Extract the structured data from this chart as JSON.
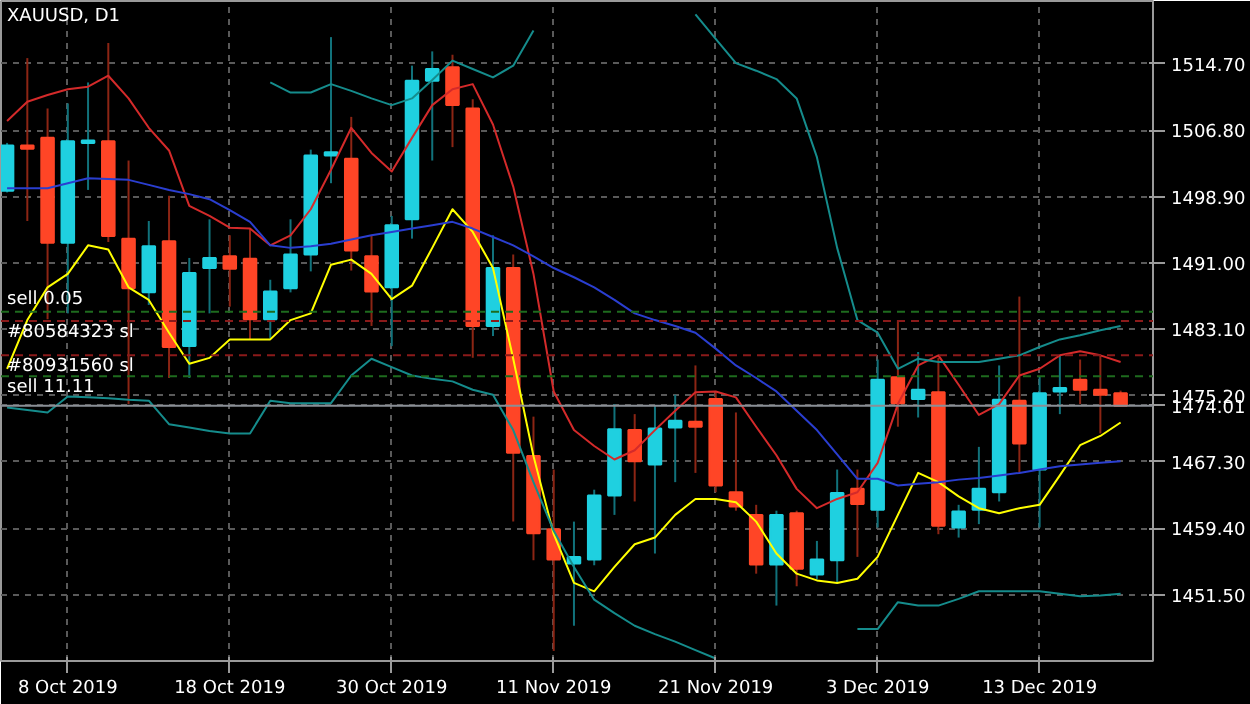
{
  "chart_data": {
    "type": "candlestick",
    "title": "XAUUSD, D1",
    "categories": [
      null,
      null,
      null,
      "8 Oct 2019",
      null,
      null,
      null,
      null,
      null,
      null,
      null,
      "18 Oct 2019",
      null,
      null,
      null,
      null,
      null,
      null,
      null,
      "30 Oct 2019",
      null,
      null,
      null,
      null,
      null,
      null,
      null,
      "11 Nov 2019",
      null,
      null,
      null,
      null,
      null,
      null,
      null,
      "21 Nov 2019",
      null,
      null,
      null,
      null,
      null,
      null,
      null,
      "3 Dec 2019",
      null,
      null,
      null,
      null,
      null,
      null,
      null,
      "13 Dec 2019",
      null,
      null,
      null,
      null
    ],
    "ohlc": [
      [
        1499.6,
        1505.3,
        1499.4,
        1505.0
      ],
      [
        1505.0,
        1515.4,
        1496.0,
        1504.6
      ],
      [
        1505.9,
        1509.4,
        1484.3,
        1493.4
      ],
      [
        1493.4,
        1510.0,
        1485.0,
        1505.5
      ],
      [
        1505.3,
        1512.5,
        1499.7,
        1505.6
      ],
      [
        1505.5,
        1517.2,
        1493.5,
        1494.2
      ],
      [
        1493.9,
        1503.2,
        1474.2,
        1488.0
      ],
      [
        1487.5,
        1496.0,
        1486.0,
        1493.0
      ],
      [
        1493.6,
        1499.0,
        1477.3,
        1481.0
      ],
      [
        1481.1,
        1491.6,
        1477.3,
        1489.8
      ],
      [
        1490.4,
        1496.2,
        1485.0,
        1491.6
      ],
      [
        1491.8,
        1494.3,
        1485.8,
        1490.3
      ],
      [
        1491.5,
        1495.1,
        1481.9,
        1484.3
      ],
      [
        1484.3,
        1489.0,
        1482.0,
        1487.6
      ],
      [
        1488.0,
        1496.2,
        1487.5,
        1492.0
      ],
      [
        1492.0,
        1504.5,
        1490.0,
        1503.8
      ],
      [
        1503.8,
        1517.9,
        1500.5,
        1504.2
      ],
      [
        1503.4,
        1508.4,
        1490.1,
        1492.5
      ],
      [
        1491.8,
        1494.3,
        1483.5,
        1487.6
      ],
      [
        1488.1,
        1496.6,
        1481.1,
        1495.5
      ],
      [
        1496.2,
        1514.5,
        1493.9,
        1512.7
      ],
      [
        1512.7,
        1516.2,
        1503.2,
        1514.1
      ],
      [
        1514.3,
        1515.8,
        1504.8,
        1509.8
      ],
      [
        1509.4,
        1510.5,
        1479.7,
        1483.5
      ],
      [
        1483.5,
        1494.3,
        1482.3,
        1490.4
      ],
      [
        1490.4,
        1492.0,
        1460.2,
        1468.4
      ],
      [
        1468.0,
        1472.7,
        1455.6,
        1458.8
      ],
      [
        1459.3,
        1466.4,
        1444.8,
        1455.7
      ],
      [
        1455.2,
        1460.2,
        1447.8,
        1456.0
      ],
      [
        1455.7,
        1464.0,
        1455.0,
        1463.3
      ],
      [
        1463.3,
        1474.2,
        1461.0,
        1471.2
      ],
      [
        1471.1,
        1473.0,
        1462.6,
        1467.4
      ],
      [
        1467.0,
        1474.0,
        1456.4,
        1471.3
      ],
      [
        1471.4,
        1475.3,
        1464.9,
        1472.2
      ],
      [
        1472.1,
        1478.8,
        1466.0,
        1471.5
      ],
      [
        1474.8,
        1475.7,
        1463.7,
        1464.5
      ],
      [
        1463.7,
        1473.2,
        1461.5,
        1462.0
      ],
      [
        1461.0,
        1462.2,
        1454.0,
        1455.1
      ],
      [
        1455.1,
        1461.5,
        1450.2,
        1461.0
      ],
      [
        1461.2,
        1461.5,
        1452.5,
        1454.6
      ],
      [
        1453.9,
        1457.9,
        1453.3,
        1455.7
      ],
      [
        1455.6,
        1466.4,
        1452.9,
        1463.6
      ],
      [
        1464.1,
        1466.4,
        1456.0,
        1462.3
      ],
      [
        1461.6,
        1479.5,
        1459.5,
        1477.1
      ],
      [
        1477.4,
        1484.2,
        1471.5,
        1474.3
      ],
      [
        1474.8,
        1480.4,
        1472.6,
        1475.9
      ],
      [
        1475.6,
        1479.7,
        1458.7,
        1459.7
      ],
      [
        1459.5,
        1462.2,
        1458.3,
        1461.4
      ],
      [
        1461.6,
        1469.1,
        1459.9,
        1464.1
      ],
      [
        1463.7,
        1478.8,
        1462.6,
        1474.7
      ],
      [
        1474.6,
        1487.0,
        1466.0,
        1469.5
      ],
      [
        1466.4,
        1477.5,
        1459.5,
        1475.5
      ],
      [
        1475.7,
        1480.0,
        1473.0,
        1476.1
      ],
      [
        1477.1,
        1479.5,
        1474.2,
        1475.9
      ],
      [
        1475.9,
        1480.0,
        1470.7,
        1475.3
      ],
      [
        1475.5,
        1475.8,
        1474.0,
        1474.0
      ]
    ],
    "colors": [
      "#1fd0e0",
      "#ff4526",
      "#ff4526",
      "#1fd0e0",
      "#1fd0e0",
      "#ff4526",
      "#ff4526",
      "#1fd0e0",
      "#ff4526",
      "#1fd0e0",
      "#1fd0e0",
      "#ff4526",
      "#ff4526",
      "#1fd0e0",
      "#1fd0e0",
      "#1fd0e0",
      "#1fd0e0",
      "#ff4526",
      "#ff4526",
      "#1fd0e0",
      "#1fd0e0",
      "#1fd0e0",
      "#ff4526",
      "#ff4526",
      "#1fd0e0",
      "#ff4526",
      "#ff4526",
      "#ff4526",
      "#1fd0e0",
      "#1fd0e0",
      "#1fd0e0",
      "#ff4526",
      "#1fd0e0",
      "#1fd0e0",
      "#ff4526",
      "#ff4526",
      "#ff4526",
      "#ff4526",
      "#1fd0e0",
      "#ff4526",
      "#1fd0e0",
      "#1fd0e0",
      "#ff4526",
      "#1fd0e0",
      "#ff4526",
      "#1fd0e0",
      "#ff4526",
      "#1fd0e0",
      "#1fd0e0",
      "#1fd0e0",
      "#ff4526",
      "#1fd0e0",
      "#1fd0e0",
      "#ff4526",
      "#ff4526",
      "#ff4526"
    ],
    "series": [
      {
        "type": "line",
        "color": "#d42a2a",
        "values": [
          1507.9,
          1510.2,
          1511.0,
          1511.7,
          1512.0,
          1513.3,
          1510.6,
          1507.1,
          1504.4,
          1497.8,
          1496.6,
          1495.2,
          1495.1,
          1493.1,
          1494.3,
          1497.4,
          1502.1,
          1507.1,
          1504.1,
          1501.9,
          1505.9,
          1509.8,
          1511.7,
          1512.3,
          1507.5,
          1500.1,
          1489.7,
          1475.7,
          1471.1,
          1469.2,
          1467.6,
          1468.7,
          1471.1,
          1473.4,
          1475.6,
          1475.7,
          1475.0,
          1471.5,
          1468.1,
          1464.1,
          1461.8,
          1462.9,
          1463.7,
          1467.2,
          1474.2,
          1478.8,
          1480.0,
          1476.5,
          1472.9,
          1474.2,
          1477.6,
          1478.4,
          1480.0,
          1480.5,
          1480.0,
          1479.2
        ]
      },
      {
        "type": "line",
        "color": "#ffff00",
        "values": [
          1478.4,
          1484.2,
          1488.1,
          1489.7,
          1493.1,
          1492.6,
          1488.1,
          1486.6,
          1482.7,
          1479.0,
          1479.7,
          1481.9,
          1481.9,
          1481.9,
          1484.2,
          1485.0,
          1490.8,
          1491.4,
          1489.7,
          1486.7,
          1488.3,
          1492.8,
          1497.4,
          1494.7,
          1490.4,
          1479.6,
          1468.0,
          1458.7,
          1452.9,
          1451.9,
          1454.8,
          1457.5,
          1458.3,
          1461.0,
          1462.9,
          1462.9,
          1462.5,
          1460.2,
          1456.4,
          1454.0,
          1453.2,
          1452.9,
          1453.4,
          1456.0,
          1461.0,
          1466.0,
          1464.9,
          1463.2,
          1461.8,
          1461.2,
          1461.8,
          1462.2,
          1465.7,
          1469.3,
          1470.4,
          1472.0
        ]
      },
      {
        "type": "line",
        "color": "#2a3ed0",
        "values": [
          1499.9,
          1499.9,
          1499.9,
          1500.5,
          1501.1,
          1501.0,
          1500.9,
          1500.3,
          1499.7,
          1499.2,
          1498.6,
          1497.3,
          1495.9,
          1493.1,
          1492.8,
          1493.0,
          1493.3,
          1493.8,
          1494.3,
          1494.7,
          1495.1,
          1495.5,
          1495.9,
          1495.1,
          1494.1,
          1493.1,
          1491.8,
          1490.4,
          1489.3,
          1488.1,
          1486.6,
          1485.0,
          1484.2,
          1483.5,
          1482.7,
          1480.8,
          1478.8,
          1477.3,
          1475.7,
          1473.4,
          1471.1,
          1468.2,
          1465.3,
          1465.3,
          1464.5,
          1464.7,
          1464.9,
          1465.2,
          1465.4,
          1465.7,
          1466.0,
          1466.4,
          1466.8,
          1467.0,
          1467.2,
          1467.4
        ]
      },
      {
        "type": "line",
        "color": "#158c8c",
        "values": [
          null,
          null,
          null,
          null,
          null,
          null,
          null,
          null,
          null,
          null,
          null,
          null,
          null,
          1512.5,
          1511.3,
          1511.3,
          1512.3,
          1511.5,
          1510.6,
          1509.8,
          1510.6,
          1512.8,
          1515.1,
          1514.1,
          1513.1,
          1514.5,
          1518.7,
          null,
          null,
          null,
          null,
          null,
          null,
          null,
          1520.6,
          1517.7,
          1514.8,
          1513.9,
          1512.9,
          1510.6,
          1503.6,
          1492.8,
          1484.2,
          1482.7,
          1478.4,
          1479.6,
          1479.2,
          1479.2,
          1479.2,
          1479.6,
          1480.0,
          1481.0,
          1481.9,
          1482.4,
          1483.0,
          1483.5
        ]
      },
      {
        "type": "line",
        "color": "#158c8c",
        "values": [
          1473.8,
          1473.5,
          1473.2,
          1475.1,
          1475.0,
          1474.9,
          1474.7,
          1474.6,
          1471.8,
          1471.4,
          1471.0,
          1470.7,
          1470.7,
          1474.6,
          1474.3,
          1474.3,
          1474.3,
          1477.6,
          1479.6,
          1478.6,
          1477.6,
          1477.2,
          1476.9,
          1475.9,
          1475.3,
          1471.1,
          1464.9,
          1459.1,
          1454.8,
          1450.9,
          1449.3,
          1447.8,
          1446.8,
          1445.9,
          1444.9,
          1443.9,
          null,
          null,
          null,
          null,
          null,
          null,
          1447.4,
          1447.4,
          1450.6,
          1450.2,
          1450.2,
          1451.0,
          1451.9,
          1451.9,
          1451.9,
          1451.9,
          1451.6,
          1451.3,
          1451.4,
          1451.6
        ]
      }
    ],
    "ylim": [
      1443.6,
      1522.2
    ],
    "yticks": [
      {
        "value": 1451.5,
        "label": "1451.50"
      },
      {
        "value": 1459.4,
        "label": "1459.40"
      },
      {
        "value": 1467.3,
        "label": "1467.30"
      },
      {
        "value": 1475.2,
        "label": "1475.20"
      },
      {
        "value": 1483.1,
        "label": "1483.10"
      },
      {
        "value": 1491.0,
        "label": "1491.00"
      },
      {
        "value": 1498.9,
        "label": "1498.90"
      },
      {
        "value": 1506.8,
        "label": "1506.80"
      },
      {
        "value": 1514.7,
        "label": "1514.70"
      }
    ],
    "ref_lines": [
      {
        "axis": "y",
        "value": 1485.2,
        "label": "sell 0.05",
        "color": "#1e6b1e",
        "line_style": "dashed"
      },
      {
        "axis": "y",
        "value": 1484.1,
        "label": "#80584323 sl",
        "color": "#8b1a1a",
        "line_style": "dashed"
      },
      {
        "axis": "y",
        "value": 1480.0,
        "label": "#80931560 sl",
        "color": "#8b1a1a",
        "line_style": "dashed"
      },
      {
        "axis": "y",
        "value": 1477.5,
        "label": "sell 11.11",
        "color": "#1e6b1e",
        "line_style": "dashed"
      },
      {
        "axis": "y",
        "value": 1474.01,
        "label": "1474.01",
        "color": "#8a8f96",
        "line_style": "solid"
      }
    ],
    "grid": true
  }
}
